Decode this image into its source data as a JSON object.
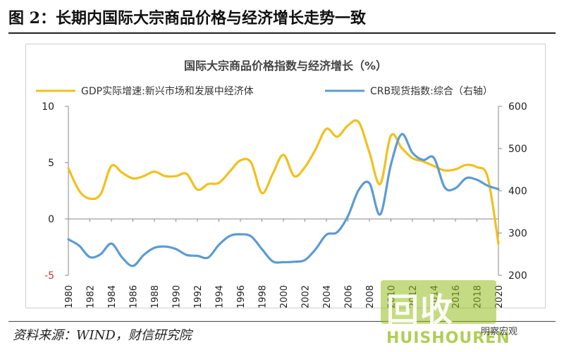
{
  "figure_title": "图 2：长期内国际大宗商品价格与经济增长走势一致",
  "source_note": "资料来源：WIND，财信研究院",
  "watermark": {
    "mark": "回收",
    "sub": "HUISHOUREN",
    "wechat": "明察宏观"
  },
  "colors": {
    "gdp": "#f2c01d",
    "crb": "#5b9bd5",
    "left_axis": "#c0392b",
    "right_axis": "#222222"
  },
  "chart_data": {
    "type": "line",
    "title": "国际大宗商品价格指数与经济增长（%）",
    "legend_position": "top",
    "grid": false,
    "x_ticks": [
      1980,
      1982,
      1984,
      1986,
      1988,
      1990,
      1992,
      1994,
      1996,
      1998,
      2000,
      2002,
      2004,
      2006,
      2008,
      2010,
      2012,
      2014,
      2016,
      2018,
      2020
    ],
    "y_left": {
      "range": [
        -5,
        10
      ],
      "ticks": [
        -5,
        0,
        5,
        10
      ]
    },
    "y_right": {
      "range": [
        200,
        600
      ],
      "ticks": [
        200,
        300,
        400,
        500,
        600
      ]
    },
    "series": [
      {
        "name": "GDP实际增速:新兴市场和发展中经济体",
        "axis": "left",
        "x": [
          1980,
          1981,
          1982,
          1983,
          1984,
          1985,
          1986,
          1987,
          1988,
          1989,
          1990,
          1991,
          1992,
          1993,
          1994,
          1995,
          1996,
          1997,
          1998,
          1999,
          2000,
          2001,
          2002,
          2003,
          2004,
          2005,
          2006,
          2007,
          2008,
          2009,
          2010,
          2011,
          2012,
          2013,
          2014,
          2015,
          2016,
          2017,
          2018,
          2019,
          2020
        ],
        "values": [
          4.5,
          2.5,
          1.8,
          2.2,
          4.7,
          4.1,
          3.6,
          3.8,
          4.2,
          3.8,
          3.8,
          4.0,
          2.6,
          3.1,
          3.2,
          4.2,
          5.2,
          5.0,
          2.3,
          4.0,
          5.7,
          3.8,
          4.6,
          6.2,
          8.0,
          7.3,
          8.3,
          8.6,
          5.9,
          3.1,
          7.4,
          6.3,
          5.4,
          5.1,
          4.7,
          4.3,
          4.4,
          4.8,
          4.6,
          3.7,
          -2.2
        ]
      },
      {
        "name": "CRB现货指数:综合（右轴）",
        "axis": "right",
        "x": [
          1980,
          1981,
          1982,
          1983,
          1984,
          1985,
          1986,
          1987,
          1988,
          1989,
          1990,
          1991,
          1992,
          1993,
          1994,
          1995,
          1996,
          1997,
          1998,
          1999,
          2000,
          2001,
          2002,
          2003,
          2004,
          2005,
          2006,
          2007,
          2008,
          2009,
          2010,
          2011,
          2012,
          2013,
          2014,
          2015,
          2016,
          2017,
          2018,
          2019,
          2020
        ],
        "values": [
          285,
          270,
          243,
          250,
          275,
          242,
          222,
          248,
          265,
          268,
          262,
          248,
          246,
          242,
          272,
          293,
          297,
          292,
          262,
          233,
          231,
          232,
          236,
          262,
          296,
          302,
          340,
          402,
          418,
          344,
          462,
          534,
          490,
          473,
          478,
          408,
          406,
          430,
          426,
          412,
          404
        ]
      }
    ]
  }
}
